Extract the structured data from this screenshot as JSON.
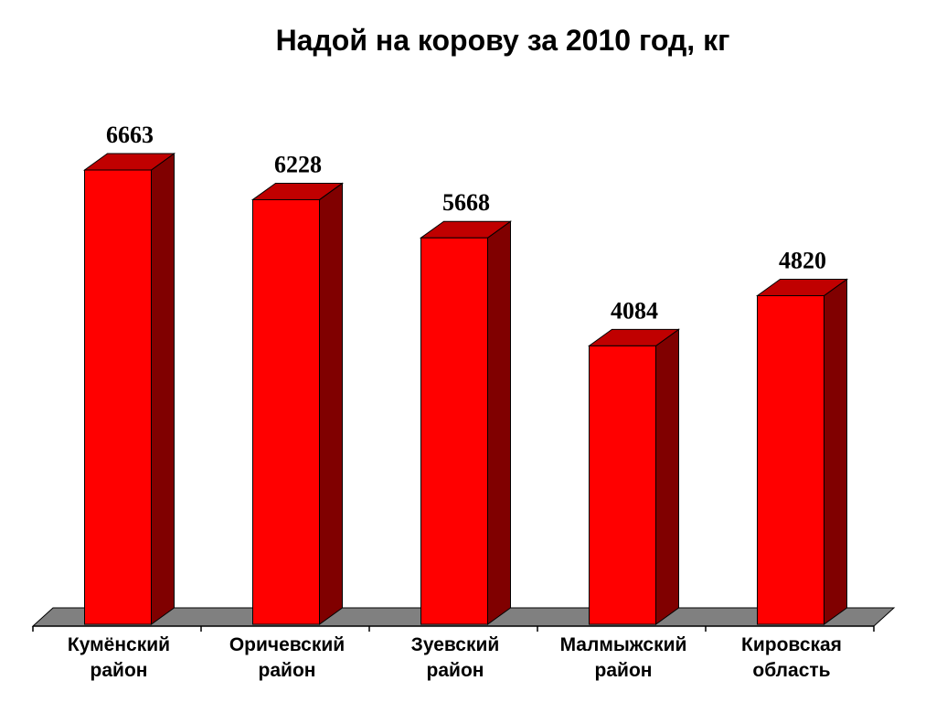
{
  "chart_data": {
    "type": "bar",
    "title": "Надой на корову за 2010 год, кг",
    "categories": [
      [
        "Кумёнский",
        "район"
      ],
      [
        "Оричевский",
        "район"
      ],
      [
        "Зуевский",
        "район"
      ],
      [
        "Малмыжский",
        "район"
      ],
      [
        "Кировская",
        "область"
      ]
    ],
    "values": [
      6663,
      6228,
      5668,
      4084,
      4820
    ],
    "value_labels": [
      "6663",
      "6228",
      "5668",
      "4084",
      "4820"
    ],
    "ylim": [
      0,
      7000
    ],
    "grid": false,
    "style": "3d-column",
    "colors": {
      "bar_front": "#ff0000",
      "bar_top": "#c00000",
      "bar_side": "#800000",
      "floor": "#808080"
    }
  }
}
